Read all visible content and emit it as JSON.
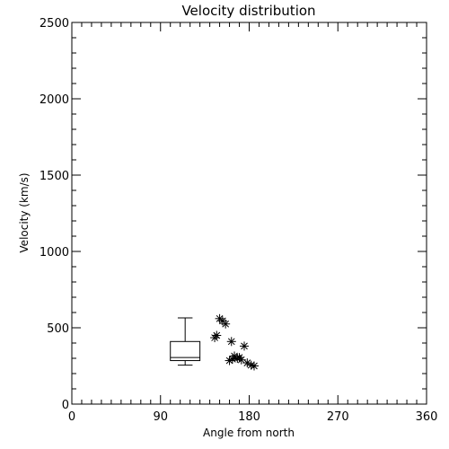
{
  "chart_data": {
    "type": "scatter",
    "title": "Velocity distribution",
    "xlabel": "Angle from north",
    "ylabel": "Velocity (km/s)",
    "xlim": [
      0,
      360
    ],
    "ylim": [
      0,
      2500
    ],
    "x_ticks": [
      0,
      90,
      180,
      270,
      360
    ],
    "y_ticks": [
      0,
      500,
      1000,
      1500,
      2000,
      2500
    ],
    "x_minor_step": 10,
    "y_minor_step": 100,
    "grid": false,
    "box": {
      "x": 115,
      "width": 30,
      "min": 255,
      "q1": 285,
      "median": 305,
      "q3": 410,
      "max": 565
    },
    "points": [
      {
        "x": 150,
        "y": 560
      },
      {
        "x": 153,
        "y": 545
      },
      {
        "x": 156,
        "y": 525
      },
      {
        "x": 147,
        "y": 450
      },
      {
        "x": 145,
        "y": 435
      },
      {
        "x": 162,
        "y": 410
      },
      {
        "x": 175,
        "y": 380
      },
      {
        "x": 165,
        "y": 315
      },
      {
        "x": 170,
        "y": 305
      },
      {
        "x": 163,
        "y": 295
      },
      {
        "x": 160,
        "y": 285
      },
      {
        "x": 172,
        "y": 290
      },
      {
        "x": 168,
        "y": 300
      },
      {
        "x": 178,
        "y": 270
      },
      {
        "x": 182,
        "y": 255
      },
      {
        "x": 185,
        "y": 250
      }
    ]
  }
}
